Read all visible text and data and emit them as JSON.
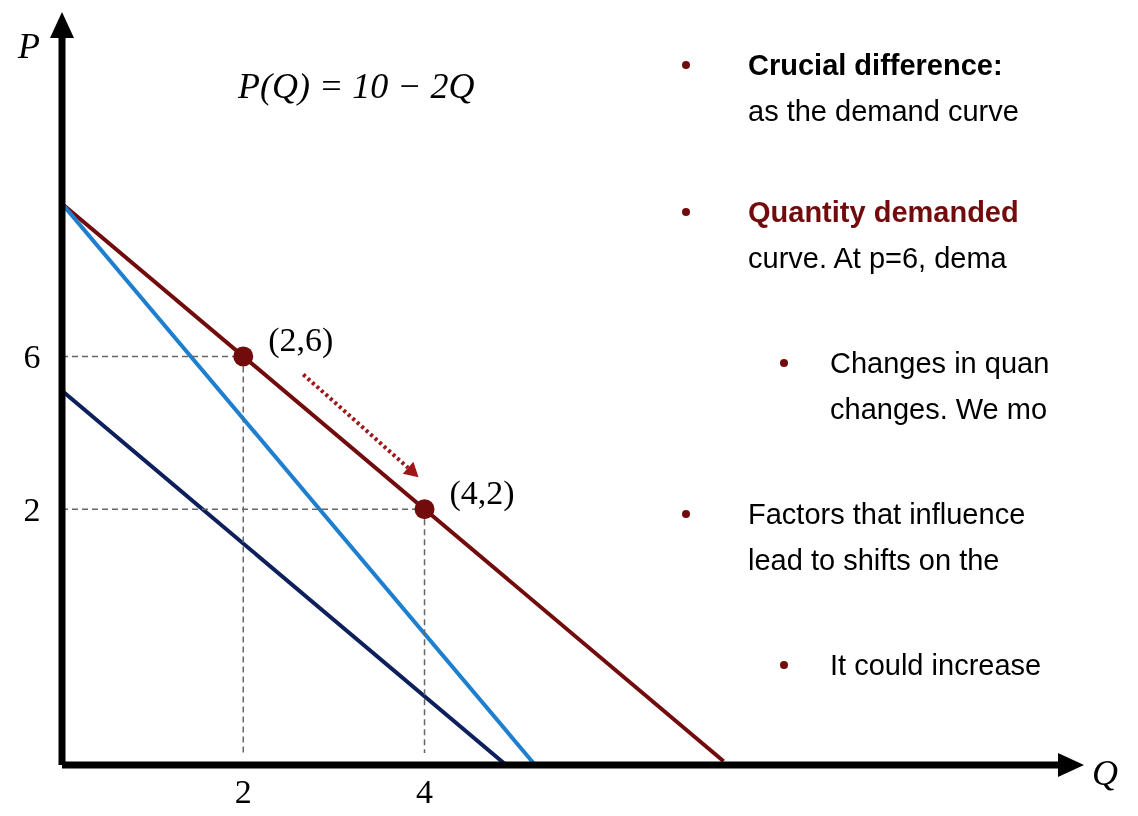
{
  "chart_data": {
    "type": "line",
    "xlabel": "Q",
    "ylabel": "P",
    "xlim": [
      0,
      11.1
    ],
    "ylim": [
      -4.7,
      14.6
    ],
    "xticks": [
      2,
      4
    ],
    "yticks": [
      2,
      6
    ],
    "grid": false,
    "marker": "none",
    "line_style": "solid",
    "series": [
      {
        "x": [
          0,
          7.3
        ],
        "values": [
          10,
          -4.6
        ],
        "color": "#720c0c"
      },
      {
        "x": [
          0,
          5.22
        ],
        "values": [
          10,
          -4.7
        ],
        "color": "#1f7fcf"
      },
      {
        "x": [
          0,
          4.9
        ],
        "values": [
          5.1,
          -4.7
        ],
        "color": "#0d1f5c"
      },
      {
        "type": "scatter",
        "marker": "circle",
        "x": [
          2,
          4
        ],
        "values": [
          6,
          2
        ],
        "color": "#720c0c"
      }
    ],
    "annotations": [
      "P(Q) = 10 − 2Q",
      "Crucial difference:",
      "as the demand curve",
      "Quantity demanded",
      "curve. At p=6, dema",
      "Changes in quan",
      "changes. We mo",
      "Factors that influence",
      "lead to shifts on the",
      "It could increase",
      {
        "text": "(2,6)",
        "x": 2,
        "y": 6
      },
      {
        "text": "(4,2)",
        "x": 4,
        "y": 2
      }
    ]
  }
}
